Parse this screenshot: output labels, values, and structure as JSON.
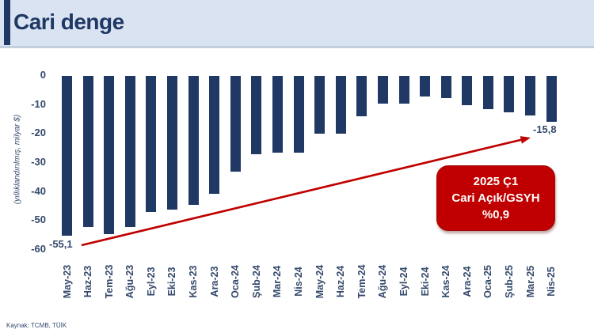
{
  "header": {
    "title": "Cari denge"
  },
  "chart_data": {
    "type": "bar",
    "title": "Cari denge",
    "ylabel": "(yıllıklandırılmış, milyar $)",
    "xlabel": "",
    "ylim": [
      -60,
      0
    ],
    "yticks": [
      "0",
      "-10",
      "-20",
      "-30",
      "-40",
      "-50",
      "-60"
    ],
    "grid": false,
    "legend": false,
    "categories": [
      "May-23",
      "Haz-23",
      "Tem-23",
      "Ağu-23",
      "Eyl-23",
      "Eki-23",
      "Kas-23",
      "Ara-23",
      "Oca-24",
      "Şub-24",
      "Mar-24",
      "Nis-24",
      "May-24",
      "Haz-24",
      "Tem-24",
      "Ağu-24",
      "Eyl-24",
      "Eki-24",
      "Kas-24",
      "Ara-24",
      "Oca-25",
      "Şub-25",
      "Mar-25",
      "Nis-25"
    ],
    "values": [
      -55.1,
      -52,
      -54.5,
      -52,
      -47,
      -46,
      -44.5,
      -40.5,
      -33,
      -27,
      -26.5,
      -26.5,
      -20,
      -20,
      -14,
      -9.5,
      -9.5,
      -7,
      -7.5,
      -10,
      -11.5,
      -12.5,
      -13.5,
      -15.8
    ],
    "point_labels": {
      "first": "-55,1",
      "last": "-15,8"
    },
    "annotation_box": {
      "line1": "2025 Ç1",
      "line2": "Cari Açık/GSYH",
      "line3": "%0,9"
    }
  },
  "footer": {
    "source": "Kaynak: TCMB, TÜİK"
  },
  "colors": {
    "bar": "#1f3864",
    "title_text": "#1f3864",
    "header_bg": "#dae3f1",
    "accent_red": "#c00000",
    "axis_text": "#34496b",
    "annotation_text": "#ffffff"
  }
}
